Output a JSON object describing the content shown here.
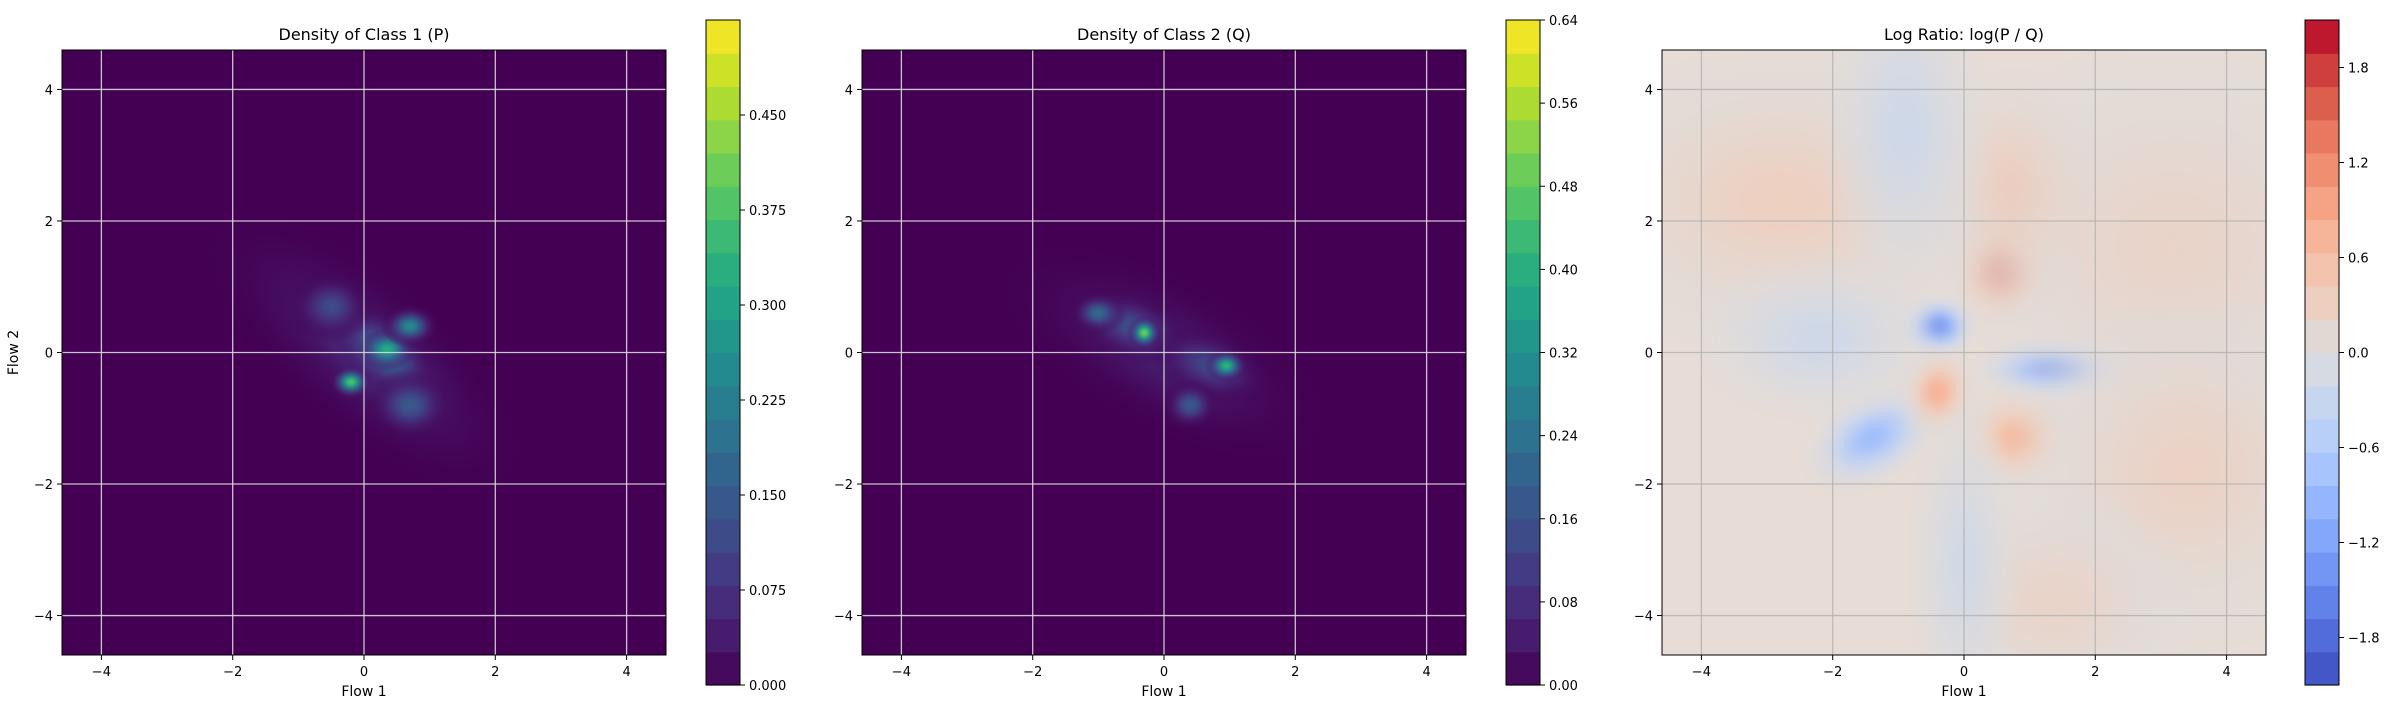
{
  "chart_data": [
    {
      "type": "heatmap",
      "title": "Density of Class 1 (P)",
      "xlabel": "Flow 1",
      "ylabel": "Flow 2",
      "xlim": [
        -4.6,
        4.6
      ],
      "ylim": [
        -4.6,
        4.6
      ],
      "xticks": [
        "−4",
        "−2",
        "0",
        "2",
        "4"
      ],
      "yticks": [
        "−4",
        "−2",
        "0",
        "2",
        "4"
      ],
      "grid": true,
      "colormap": "viridis",
      "background_color": "#440154",
      "colorbar": {
        "min": 0.0,
        "max": 0.525,
        "ticks": [
          "0.000",
          "0.075",
          "0.150",
          "0.225",
          "0.300",
          "0.375",
          "0.450"
        ]
      },
      "blobs": [
        {
          "x": 0.0,
          "y": 0.0,
          "sx": 1.4,
          "sy": 0.55,
          "angle_deg": -40,
          "peak": 0.06
        },
        {
          "x": 0.2,
          "y": -0.1,
          "sx": 0.9,
          "sy": 0.4,
          "angle_deg": -40,
          "peak": 0.09
        },
        {
          "x": 0.3,
          "y": 0.0,
          "sx": 0.45,
          "sy": 0.25,
          "angle_deg": -40,
          "peak": 0.2
        },
        {
          "x": -0.2,
          "y": -0.45,
          "sx": 0.15,
          "sy": 0.12,
          "angle_deg": 0,
          "peak": 0.38
        },
        {
          "x": 0.35,
          "y": 0.05,
          "sx": 0.2,
          "sy": 0.15,
          "angle_deg": 0,
          "peak": 0.33
        },
        {
          "x": 0.7,
          "y": 0.4,
          "sx": 0.2,
          "sy": 0.15,
          "angle_deg": 0,
          "peak": 0.25
        },
        {
          "x": 0.7,
          "y": -0.8,
          "sx": 0.3,
          "sy": 0.25,
          "angle_deg": 0,
          "peak": 0.15
        },
        {
          "x": -0.5,
          "y": 0.7,
          "sx": 0.3,
          "sy": 0.25,
          "angle_deg": 0,
          "peak": 0.12
        }
      ]
    },
    {
      "type": "heatmap",
      "title": "Density of Class 2 (Q)",
      "xlabel": "Flow 1",
      "ylabel": "",
      "xlim": [
        -4.6,
        4.6
      ],
      "ylim": [
        -4.6,
        4.6
      ],
      "xticks": [
        "−4",
        "−2",
        "0",
        "2",
        "4"
      ],
      "yticks": [
        "−4",
        "−2",
        "0",
        "2",
        "4"
      ],
      "grid": true,
      "colormap": "viridis",
      "background_color": "#440154",
      "colorbar": {
        "min": 0.0,
        "max": 0.64,
        "ticks": [
          "0.00",
          "0.08",
          "0.16",
          "0.24",
          "0.32",
          "0.40",
          "0.48",
          "0.56",
          "0.64"
        ]
      },
      "blobs": [
        {
          "x": 0.0,
          "y": 0.0,
          "sx": 1.3,
          "sy": 0.55,
          "angle_deg": -28,
          "peak": 0.06
        },
        {
          "x": -0.5,
          "y": 0.4,
          "sx": 0.45,
          "sy": 0.25,
          "angle_deg": -20,
          "peak": 0.15
        },
        {
          "x": 0.7,
          "y": -0.2,
          "sx": 0.45,
          "sy": 0.25,
          "angle_deg": -20,
          "peak": 0.14
        },
        {
          "x": -0.3,
          "y": 0.3,
          "sx": 0.12,
          "sy": 0.12,
          "angle_deg": 0,
          "peak": 0.5
        },
        {
          "x": 0.95,
          "y": -0.2,
          "sx": 0.15,
          "sy": 0.12,
          "angle_deg": 0,
          "peak": 0.42
        },
        {
          "x": -1.0,
          "y": 0.6,
          "sx": 0.2,
          "sy": 0.15,
          "angle_deg": 0,
          "peak": 0.22
        },
        {
          "x": 0.4,
          "y": -0.8,
          "sx": 0.2,
          "sy": 0.18,
          "angle_deg": 0,
          "peak": 0.18
        }
      ]
    },
    {
      "type": "heatmap",
      "title": "Log Ratio: log(P / Q)",
      "xlabel": "Flow 1",
      "ylabel": "",
      "xlim": [
        -4.6,
        4.6
      ],
      "ylim": [
        -4.6,
        4.6
      ],
      "xticks": [
        "−4",
        "−2",
        "0",
        "2",
        "4"
      ],
      "yticks": [
        "−4",
        "−2",
        "0",
        "2",
        "4"
      ],
      "grid": true,
      "colormap": "coolwarm",
      "background_color": "#e7dcd6",
      "colorbar": {
        "min": -2.1,
        "max": 2.1,
        "ticks": [
          "−1.8",
          "−1.2",
          "−0.6",
          "0.0",
          "0.6",
          "1.2",
          "1.8"
        ]
      },
      "blobs": [
        {
          "x": 0.6,
          "y": 1.3,
          "sx": 0.4,
          "sy": 0.45,
          "angle_deg": 0,
          "peak": 1.6
        },
        {
          "x": 0.8,
          "y": 2.4,
          "sx": 0.7,
          "sy": 0.9,
          "angle_deg": 0,
          "peak": 0.55
        },
        {
          "x": -0.4,
          "y": 0.4,
          "sx": 0.3,
          "sy": 0.25,
          "angle_deg": 0,
          "peak": -1.4
        },
        {
          "x": 1.4,
          "y": -0.25,
          "sx": 0.6,
          "sy": 0.25,
          "angle_deg": 0,
          "peak": -1.3
        },
        {
          "x": -1.4,
          "y": -1.3,
          "sx": 0.55,
          "sy": 0.35,
          "angle_deg": 30,
          "peak": -0.9
        },
        {
          "x": -0.4,
          "y": -0.6,
          "sx": 0.3,
          "sy": 0.35,
          "angle_deg": 0,
          "peak": 0.8
        },
        {
          "x": 0.8,
          "y": -1.3,
          "sx": 0.45,
          "sy": 0.4,
          "angle_deg": 0,
          "peak": 0.7
        },
        {
          "x": -2.8,
          "y": 2.3,
          "sx": 1.6,
          "sy": 1.1,
          "angle_deg": 0,
          "peak": 0.35
        },
        {
          "x": 3.2,
          "y": 1.6,
          "sx": 1.6,
          "sy": 1.5,
          "angle_deg": 0,
          "peak": 0.25
        },
        {
          "x": 3.4,
          "y": -1.8,
          "sx": 1.3,
          "sy": 1.3,
          "angle_deg": 0,
          "peak": 0.3
        },
        {
          "x": -0.9,
          "y": 3.4,
          "sx": 0.6,
          "sy": 1.2,
          "angle_deg": 0,
          "peak": -0.25
        },
        {
          "x": -2.2,
          "y": 0.2,
          "sx": 0.9,
          "sy": 0.6,
          "angle_deg": 0,
          "peak": -0.25
        },
        {
          "x": 1.4,
          "y": -3.8,
          "sx": 1.0,
          "sy": 0.8,
          "angle_deg": 0,
          "peak": 0.25
        },
        {
          "x": 0.0,
          "y": -3.2,
          "sx": 0.4,
          "sy": 1.2,
          "angle_deg": 0,
          "peak": -0.2
        }
      ]
    }
  ]
}
